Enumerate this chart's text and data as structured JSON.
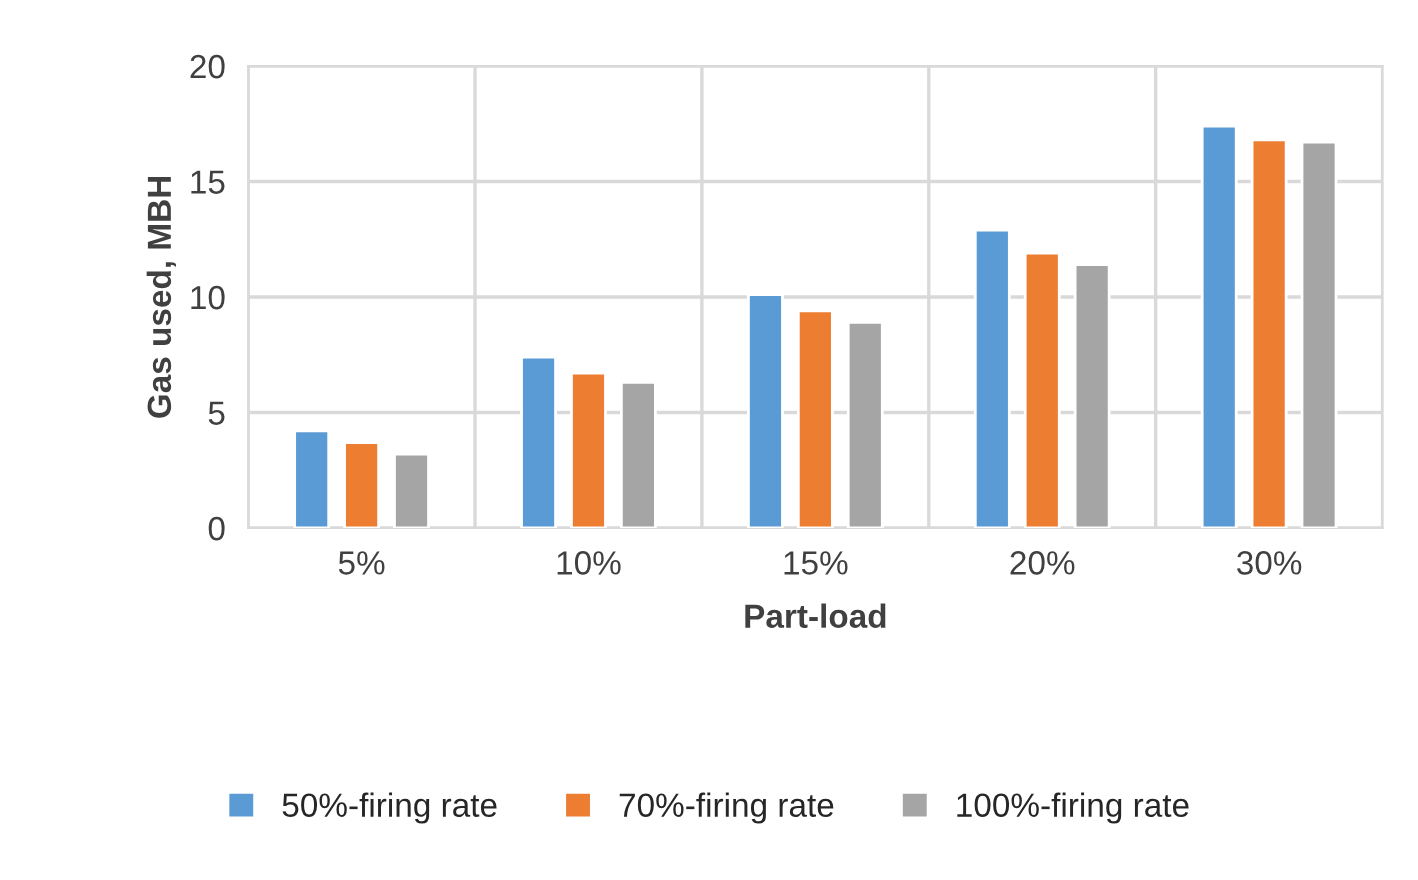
{
  "chart_data": {
    "type": "bar",
    "xlabel": "Part-load",
    "ylabel": "Gas used, MBH",
    "categories": [
      "5%",
      "10%",
      "15%",
      "20%",
      "30%"
    ],
    "series": [
      {
        "name": "50%-firing rate",
        "color": "#5b9bd5",
        "values": [
          4.2,
          7.4,
          10.1,
          12.9,
          17.4
        ]
      },
      {
        "name": "70%-firing rate",
        "color": "#ed7d31",
        "values": [
          3.7,
          6.7,
          9.4,
          11.9,
          16.8
        ]
      },
      {
        "name": "100%-firing rate",
        "color": "#a5a5a5",
        "values": [
          3.2,
          6.3,
          8.9,
          11.4,
          16.7
        ]
      }
    ],
    "ylim": [
      0,
      20
    ],
    "yticks": [
      0,
      5,
      10,
      15,
      20
    ],
    "grid": true,
    "legend": "bottom"
  }
}
